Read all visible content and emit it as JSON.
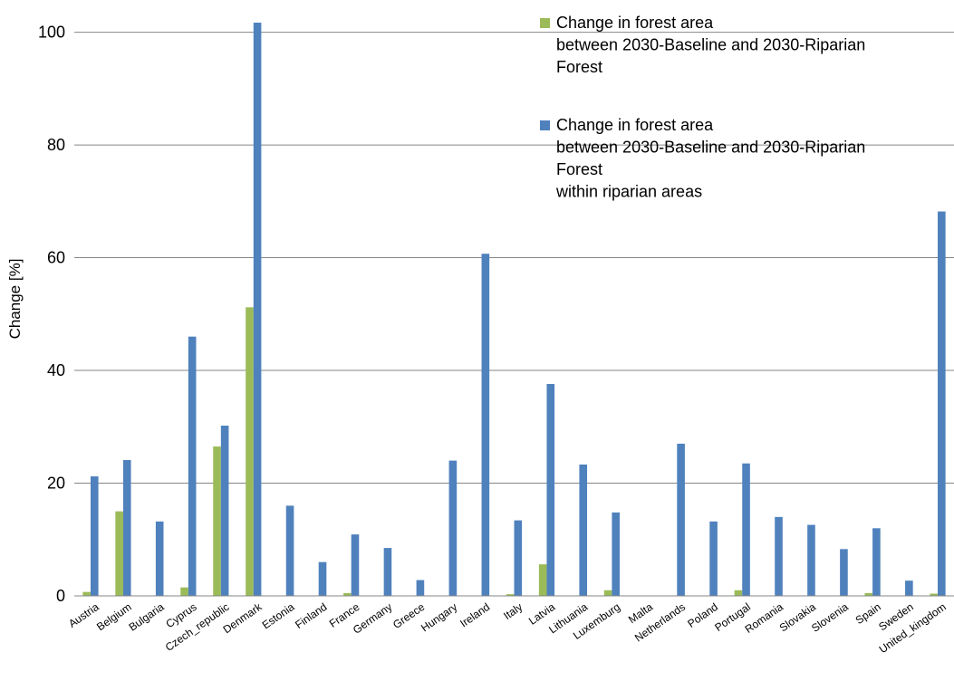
{
  "chart_data": {
    "type": "bar",
    "ylabel": "Change [%]",
    "xlabel": "",
    "ylim": [
      0,
      100
    ],
    "yticks": [
      0,
      20,
      40,
      60,
      80,
      100
    ],
    "grid": "horizontal",
    "legend_position": "top-right",
    "categories": [
      "Austria",
      "Belgium",
      "Bulgaria",
      "Cyprus",
      "Czech_republic",
      "Denmark",
      "Estonia",
      "Finland",
      "France",
      "Germany",
      "Greece",
      "Hungary",
      "Ireland",
      "Italy",
      "Latvia",
      "Lithuania",
      "Luxemburg",
      "Malta",
      "Netherlands",
      "Poland",
      "Portugal",
      "Romania",
      "Slovakia",
      "Slovenia",
      "Spain",
      "Sweden",
      "United_kingdom"
    ],
    "series": [
      {
        "legend_lines": [
          "Change in forest area",
          "between 2030-Baseline and 2030-Riparian",
          "Forest"
        ],
        "color": "#9BBB59",
        "values": [
          0.7,
          15.0,
          0,
          1.5,
          26.5,
          51.2,
          0,
          0,
          0.5,
          0,
          0,
          0,
          0,
          0.3,
          5.6,
          0,
          1.0,
          0,
          0,
          0,
          1.0,
          0,
          0,
          0,
          0.5,
          0,
          0.4
        ]
      },
      {
        "legend_lines": [
          "Change in forest area",
          "between 2030-Baseline and 2030-Riparian",
          "Forest",
          "within riparian areas"
        ],
        "color": "#4F81BD",
        "values": [
          21.2,
          24.1,
          13.2,
          46.0,
          30.2,
          101.7,
          16.0,
          6.0,
          10.9,
          8.5,
          2.8,
          24.0,
          60.7,
          13.4,
          37.6,
          23.3,
          14.8,
          0,
          27.0,
          13.2,
          23.5,
          14.0,
          12.6,
          8.3,
          12.0,
          2.7,
          68.2
        ]
      }
    ]
  }
}
